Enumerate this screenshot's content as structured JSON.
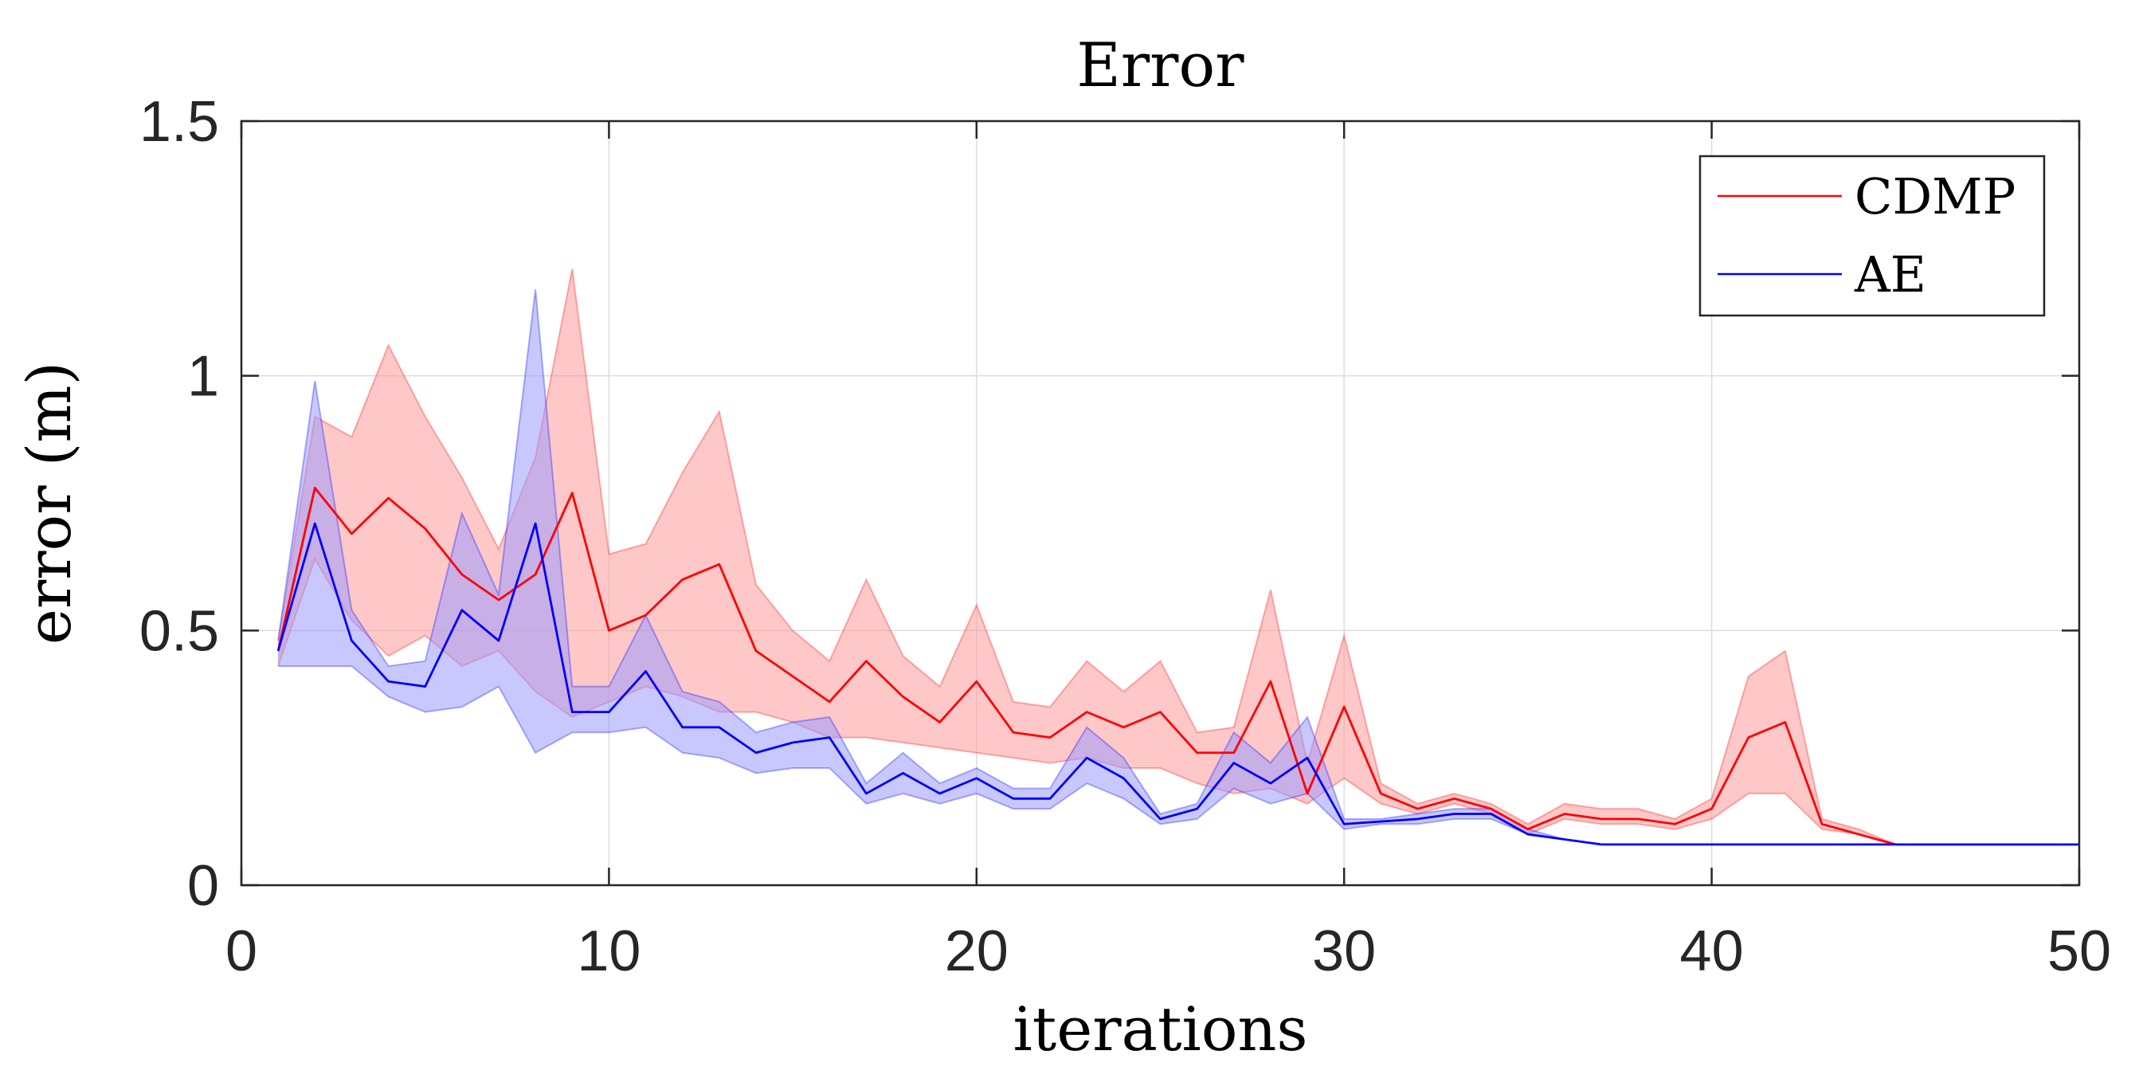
{
  "chart_data": {
    "type": "line",
    "title": "Error",
    "xlabel": "iterations",
    "ylabel": "error (m)",
    "xlim": [
      0,
      50
    ],
    "ylim": [
      0,
      1.5
    ],
    "xticks": [
      "0",
      "10",
      "20",
      "30",
      "40",
      "50"
    ],
    "yticks": [
      "0",
      "0.5",
      "1",
      "1.5"
    ],
    "grid": true,
    "legend_position": "top-right",
    "x": [
      1,
      2,
      3,
      4,
      5,
      6,
      7,
      8,
      9,
      10,
      11,
      12,
      13,
      14,
      15,
      16,
      17,
      18,
      19,
      20,
      21,
      22,
      23,
      24,
      25,
      26,
      27,
      28,
      29,
      30,
      31,
      32,
      33,
      34,
      35,
      36,
      37,
      38,
      39,
      40,
      41,
      42,
      43,
      44,
      45,
      46,
      47,
      48,
      49,
      50
    ],
    "series": [
      {
        "name": "CDMP",
        "color": "#ff0000",
        "band_color": "#ff9a9a",
        "mean": [
          0.46,
          0.78,
          0.69,
          0.76,
          0.7,
          0.61,
          0.56,
          0.61,
          0.77,
          0.5,
          0.53,
          0.6,
          0.63,
          0.46,
          0.41,
          0.36,
          0.44,
          0.37,
          0.32,
          0.4,
          0.3,
          0.29,
          0.34,
          0.31,
          0.34,
          0.26,
          0.26,
          0.4,
          0.18,
          0.35,
          0.18,
          0.15,
          0.17,
          0.15,
          0.11,
          0.14,
          0.13,
          0.13,
          0.12,
          0.15,
          0.29,
          0.32,
          0.12,
          0.1,
          0.08,
          0.08,
          0.08,
          0.08,
          0.08,
          0.08
        ],
        "upper": [
          0.48,
          0.92,
          0.88,
          1.06,
          0.92,
          0.8,
          0.66,
          0.84,
          1.21,
          0.65,
          0.67,
          0.81,
          0.93,
          0.59,
          0.5,
          0.44,
          0.6,
          0.45,
          0.39,
          0.55,
          0.36,
          0.35,
          0.44,
          0.38,
          0.44,
          0.3,
          0.31,
          0.58,
          0.24,
          0.49,
          0.2,
          0.16,
          0.18,
          0.16,
          0.12,
          0.16,
          0.15,
          0.15,
          0.13,
          0.17,
          0.41,
          0.46,
          0.13,
          0.11,
          0.08,
          0.08,
          0.08,
          0.08,
          0.08,
          0.08
        ],
        "lower": [
          0.43,
          0.64,
          0.52,
          0.45,
          0.49,
          0.43,
          0.46,
          0.38,
          0.33,
          0.36,
          0.39,
          0.37,
          0.34,
          0.34,
          0.32,
          0.29,
          0.29,
          0.28,
          0.27,
          0.26,
          0.25,
          0.24,
          0.25,
          0.23,
          0.23,
          0.2,
          0.18,
          0.19,
          0.16,
          0.21,
          0.16,
          0.14,
          0.16,
          0.14,
          0.1,
          0.13,
          0.12,
          0.12,
          0.11,
          0.13,
          0.18,
          0.18,
          0.11,
          0.1,
          0.08,
          0.08,
          0.08,
          0.08,
          0.08,
          0.08
        ]
      },
      {
        "name": "AE",
        "color": "#0000ff",
        "band_color": "#9a9aff",
        "mean": [
          0.46,
          0.71,
          0.48,
          0.4,
          0.39,
          0.54,
          0.48,
          0.71,
          0.34,
          0.34,
          0.42,
          0.31,
          0.31,
          0.26,
          0.28,
          0.29,
          0.18,
          0.22,
          0.18,
          0.21,
          0.17,
          0.17,
          0.25,
          0.21,
          0.13,
          0.15,
          0.24,
          0.2,
          0.25,
          0.12,
          0.125,
          0.13,
          0.14,
          0.14,
          0.1,
          0.09,
          0.08,
          0.08,
          0.08,
          0.08,
          0.08,
          0.08,
          0.08,
          0.08,
          0.08,
          0.08,
          0.08,
          0.08,
          0.08,
          0.08
        ],
        "upper": [
          0.48,
          0.99,
          0.54,
          0.43,
          0.44,
          0.73,
          0.57,
          1.17,
          0.39,
          0.39,
          0.53,
          0.38,
          0.36,
          0.3,
          0.32,
          0.33,
          0.2,
          0.26,
          0.2,
          0.23,
          0.19,
          0.19,
          0.31,
          0.25,
          0.14,
          0.16,
          0.3,
          0.24,
          0.33,
          0.13,
          0.13,
          0.14,
          0.15,
          0.15,
          0.11,
          0.09,
          0.08,
          0.08,
          0.08,
          0.08,
          0.08,
          0.08,
          0.08,
          0.08,
          0.08,
          0.08,
          0.08,
          0.08,
          0.08,
          0.08
        ],
        "lower": [
          0.43,
          0.43,
          0.43,
          0.37,
          0.34,
          0.35,
          0.39,
          0.26,
          0.3,
          0.3,
          0.31,
          0.26,
          0.25,
          0.22,
          0.23,
          0.23,
          0.16,
          0.18,
          0.16,
          0.18,
          0.15,
          0.15,
          0.2,
          0.17,
          0.12,
          0.13,
          0.19,
          0.16,
          0.18,
          0.11,
          0.12,
          0.12,
          0.13,
          0.13,
          0.1,
          0.09,
          0.08,
          0.08,
          0.08,
          0.08,
          0.08,
          0.08,
          0.08,
          0.08,
          0.08,
          0.08,
          0.08,
          0.08,
          0.08,
          0.08
        ]
      }
    ]
  }
}
